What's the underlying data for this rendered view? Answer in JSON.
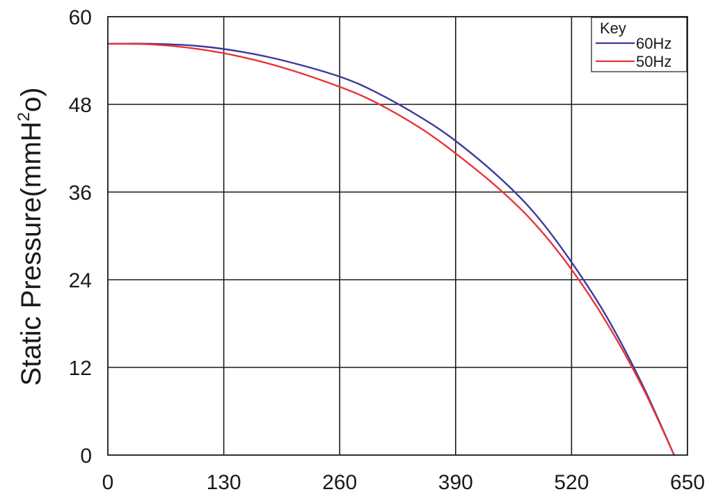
{
  "chart_data": {
    "type": "line",
    "title": "",
    "xlabel": "",
    "ylabel": "Static Pressure(mmH",
    "ylabel_sup": "2",
    "ylabel_tail": "o)",
    "xlim": [
      0,
      650
    ],
    "ylim": [
      0,
      60
    ],
    "xticks": [
      0,
      130,
      260,
      390,
      520,
      650
    ],
    "yticks": [
      0,
      12,
      24,
      36,
      48,
      60
    ],
    "xtick_labels": [
      "0",
      "130",
      "260",
      "390",
      "520",
      "650"
    ],
    "ytick_labels": [
      "0",
      "12",
      "24",
      "36",
      "48",
      "60"
    ],
    "grid": true,
    "legend": {
      "title": "Key",
      "placement": "top-right"
    },
    "series": [
      {
        "name": "60Hz",
        "color": "#3a3a9c",
        "x": [
          0,
          50,
          100,
          150,
          200,
          260,
          300,
          350,
          390,
          440,
          480,
          520,
          560,
          600,
          635
        ],
        "y": [
          56.3,
          56.3,
          56.0,
          55.2,
          53.9,
          51.8,
          49.7,
          46.3,
          43.0,
          37.9,
          32.9,
          26.4,
          18.8,
          9.5,
          0
        ]
      },
      {
        "name": "50Hz",
        "color": "#e8343a",
        "x": [
          0,
          50,
          100,
          150,
          200,
          260,
          300,
          350,
          390,
          440,
          480,
          520,
          560,
          600,
          635
        ],
        "y": [
          56.3,
          56.2,
          55.6,
          54.5,
          52.9,
          50.4,
          48.3,
          44.8,
          41.3,
          36.3,
          31.5,
          25.4,
          18.0,
          9.2,
          0
        ]
      }
    ]
  }
}
